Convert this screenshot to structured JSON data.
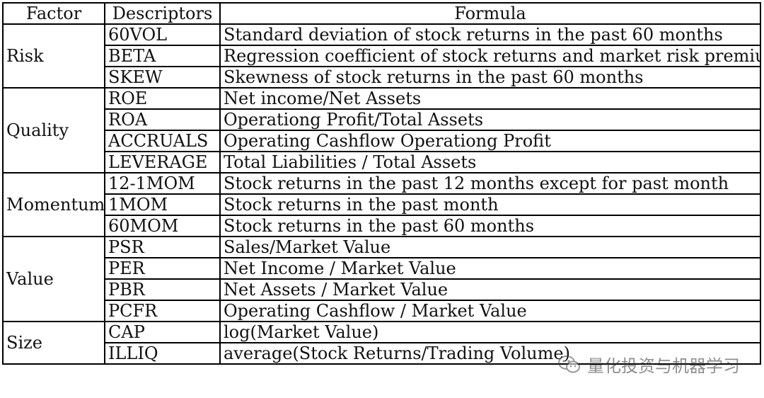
{
  "table": {
    "headers": {
      "factor": "Factor",
      "descriptors": "Descriptors",
      "formula": "Formula"
    },
    "groups": [
      {
        "factor": "Risk",
        "rows": [
          {
            "descriptor": "60VOL",
            "formula": "Standard deviation of stock returns in the past 60 months"
          },
          {
            "descriptor": "BETA",
            "formula": "Regression coefficient of stock returns and market risk premium"
          },
          {
            "descriptor": "SKEW",
            "formula": "Skewness of stock returns in the past 60 months"
          }
        ]
      },
      {
        "factor": "Quality",
        "rows": [
          {
            "descriptor": "ROE",
            "formula": "Net income/Net Assets"
          },
          {
            "descriptor": "ROA",
            "formula": "Operationg Profit/Total Assets"
          },
          {
            "descriptor": "ACCRUALS",
            "formula": "Operating Cashflow  Operationg Profit"
          },
          {
            "descriptor": "LEVERAGE",
            "formula": "Total Liabilities / Total Assets"
          }
        ]
      },
      {
        "factor": "Momentum",
        "rows": [
          {
            "descriptor": "12-1MOM",
            "formula": "Stock returns in the past 12 months except for past month"
          },
          {
            "descriptor": "1MOM",
            "formula": "Stock returns in the past month"
          },
          {
            "descriptor": "60MOM",
            "formula": "Stock returns in the past 60 months"
          }
        ]
      },
      {
        "factor": "Value",
        "rows": [
          {
            "descriptor": "PSR",
            "formula": "Sales/Market Value"
          },
          {
            "descriptor": "PER",
            "formula": "Net Income / Market Value"
          },
          {
            "descriptor": "PBR",
            "formula": "Net Assets / Market Value"
          },
          {
            "descriptor": "PCFR",
            "formula": "Operating Cashflow / Market Value"
          }
        ]
      },
      {
        "factor": "Size",
        "rows": [
          {
            "descriptor": "CAP",
            "formula": "log(Market Value)"
          },
          {
            "descriptor": "ILLIQ",
            "formula": "average(Stock Returns/Trading Volume)"
          }
        ]
      }
    ]
  },
  "watermark": {
    "icon": "wechat-icon",
    "text": "量化投资与机器学习"
  }
}
